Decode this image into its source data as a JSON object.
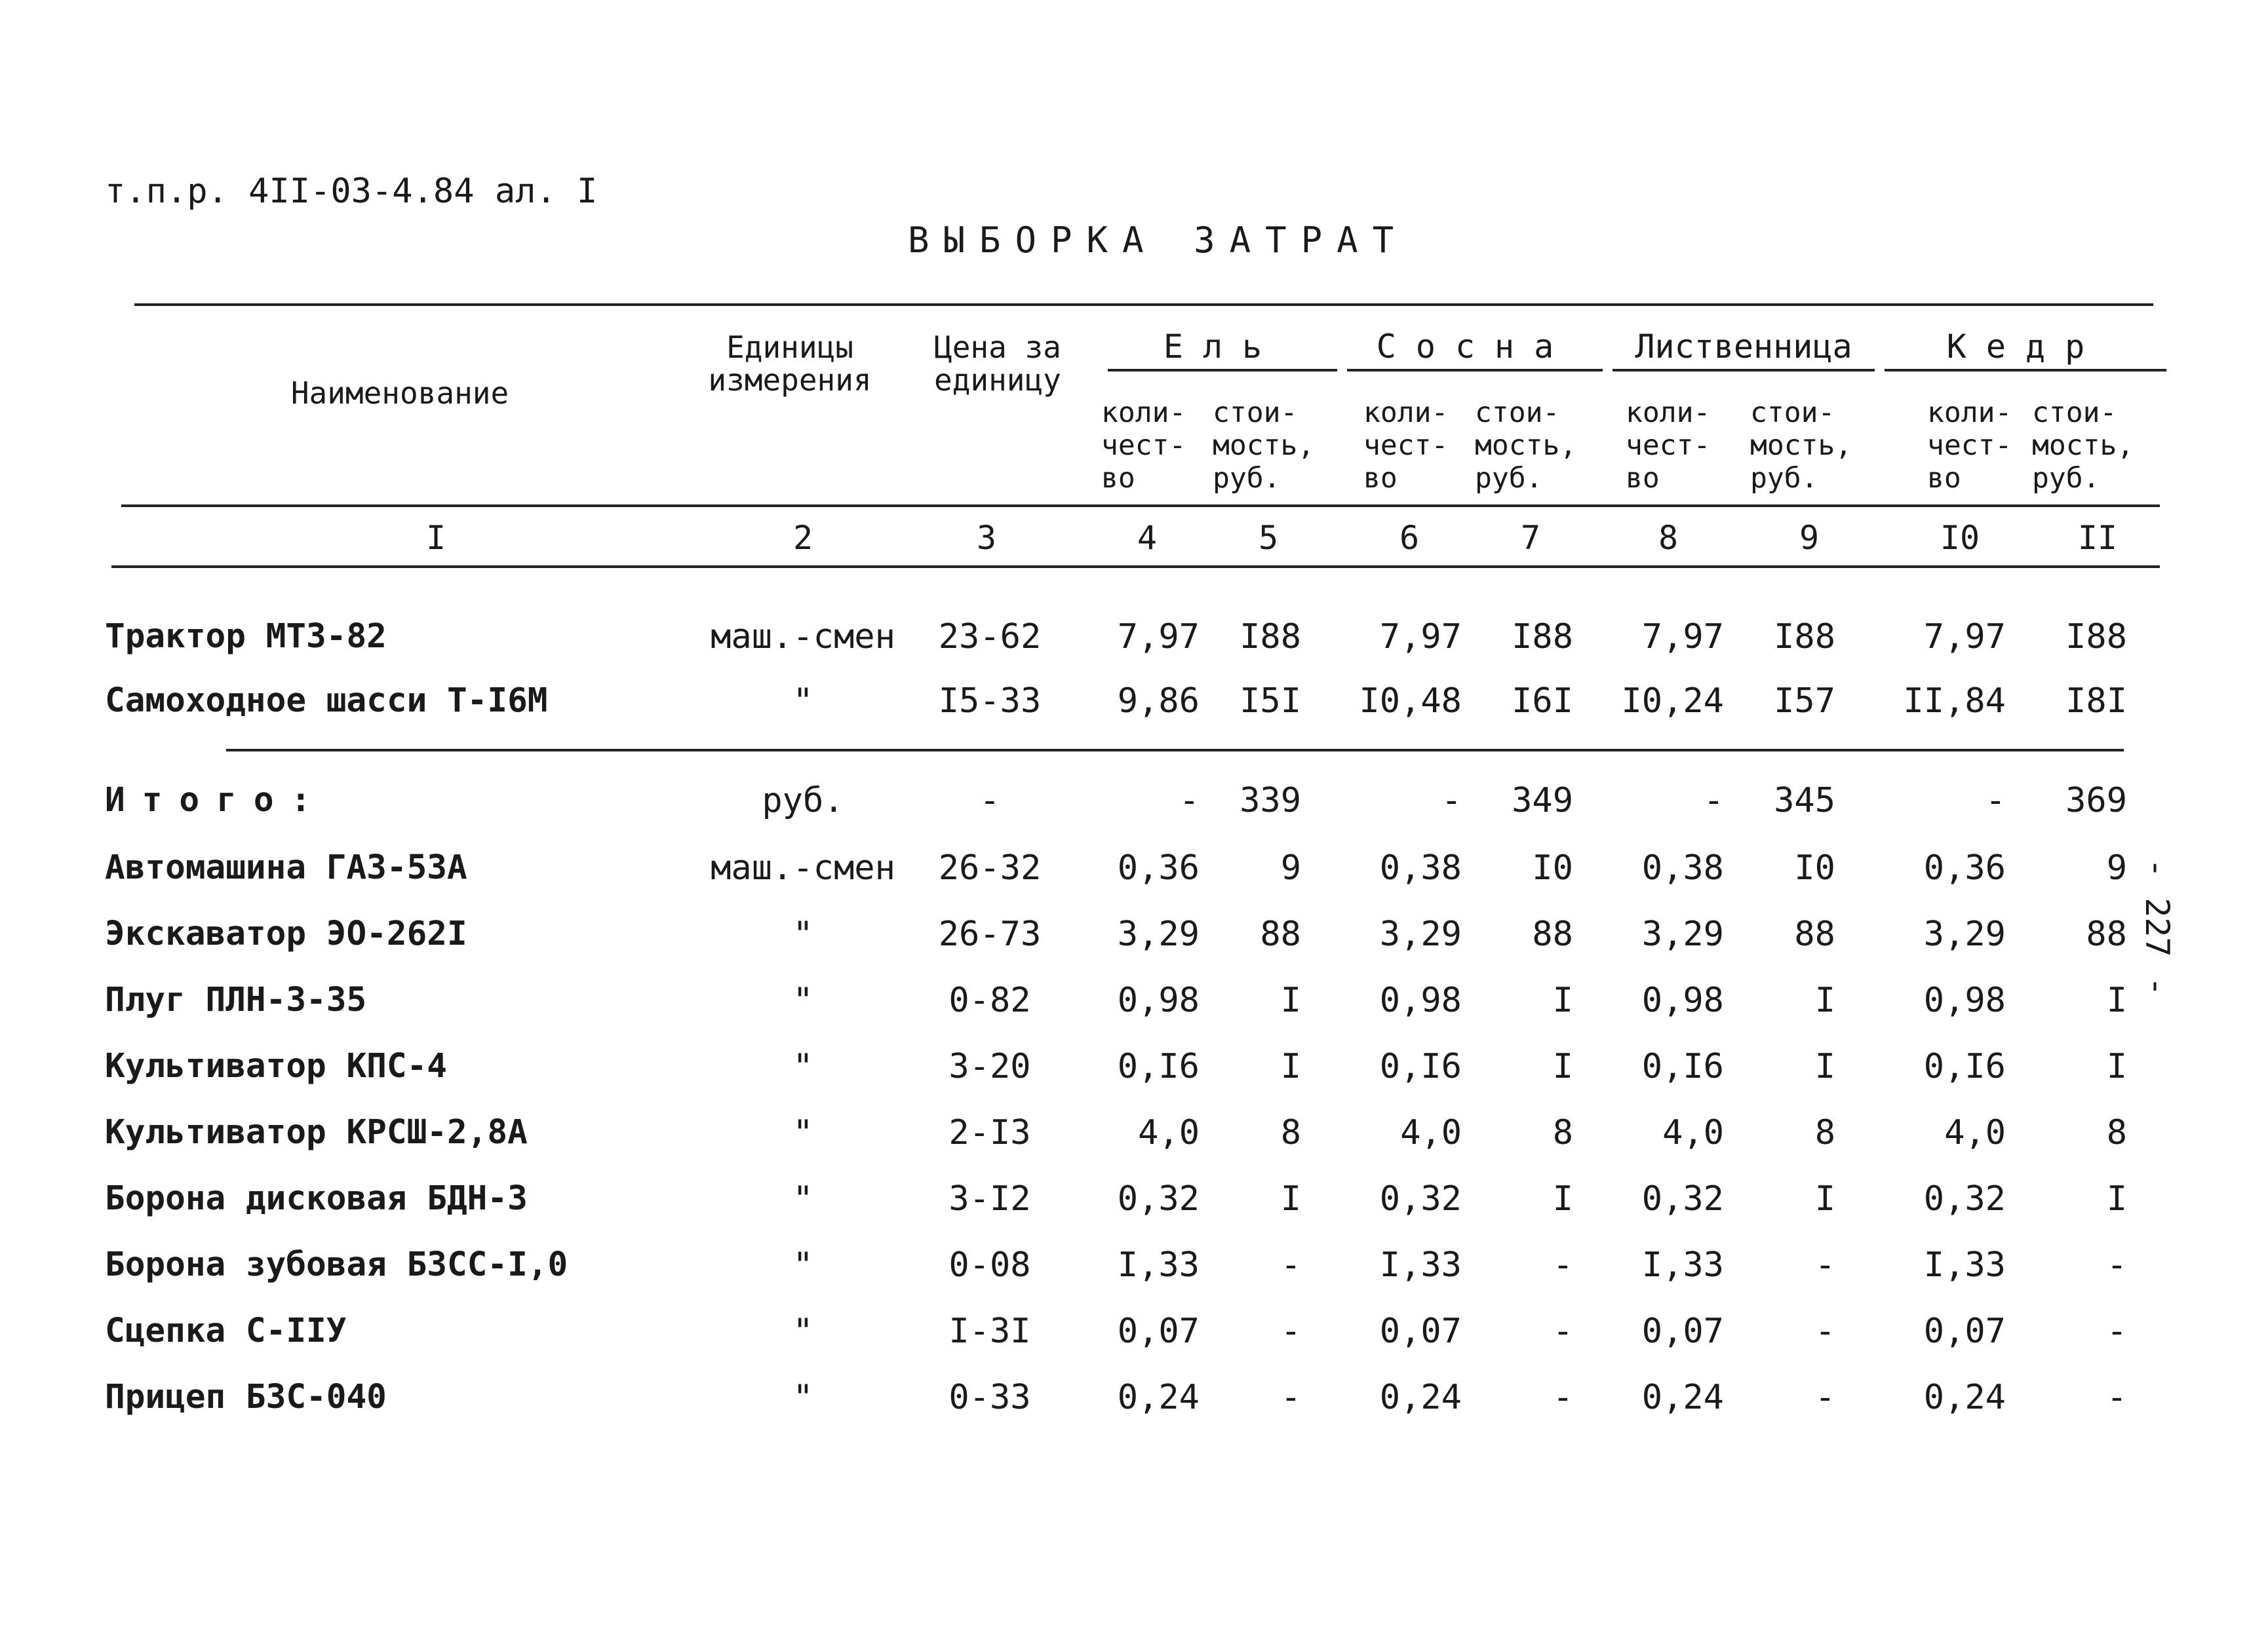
{
  "document": {
    "reference": "т.п.р. 4II-03-4.84 ал. I",
    "title": "ВЫБОРКА ЗАТРАТ",
    "page_number": "- 227 -"
  },
  "table": {
    "headers": {
      "name": "Наименование",
      "unit": [
        "Единицы",
        "измерения"
      ],
      "price": [
        "Цена за",
        "единицу"
      ],
      "groups": [
        "Ель",
        "Сосна",
        "Лиственница",
        "Кедр"
      ],
      "qty": [
        "коли-",
        "чест-",
        "во"
      ],
      "cost": [
        "стои-",
        "мость,",
        "руб."
      ]
    },
    "column_numbers": [
      "I",
      "2",
      "3",
      "4",
      "5",
      "6",
      "7",
      "8",
      "9",
      "I0",
      "II"
    ],
    "rows_top": [
      {
        "name": "Трактор МТЗ-82",
        "unit": "маш.-смен",
        "price": "23-62",
        "values": [
          "7,97",
          "I88",
          "7,97",
          "I88",
          "7,97",
          "I88",
          "7,97",
          "I88"
        ]
      },
      {
        "name": "Самоходное шасси Т-I6М",
        "unit": "\"",
        "price": "I5-33",
        "values": [
          "9,86",
          "I5I",
          "I0,48",
          "I6I",
          "I0,24",
          "I57",
          "II,84",
          "I8I"
        ]
      }
    ],
    "total": {
      "label": "Итого:",
      "unit": "руб.",
      "price": "-",
      "values": [
        "-",
        "339",
        "-",
        "349",
        "-",
        "345",
        "-",
        "369"
      ]
    },
    "rows_bottom": [
      {
        "name": "Автомашина ГАЗ-53А",
        "unit": "маш.-смен",
        "price": "26-32",
        "values": [
          "0,36",
          "9",
          "0,38",
          "I0",
          "0,38",
          "I0",
          "0,36",
          "9"
        ]
      },
      {
        "name": "Экскаватор ЭО-262I",
        "unit": "\"",
        "price": "26-73",
        "values": [
          "3,29",
          "88",
          "3,29",
          "88",
          "3,29",
          "88",
          "3,29",
          "88"
        ]
      },
      {
        "name": "Плуг ПЛН-3-35",
        "unit": "\"",
        "price": "0-82",
        "values": [
          "0,98",
          "I",
          "0,98",
          "I",
          "0,98",
          "I",
          "0,98",
          "I"
        ]
      },
      {
        "name": "Культиватор КПС-4",
        "unit": "\"",
        "price": "3-20",
        "values": [
          "0,I6",
          "I",
          "0,I6",
          "I",
          "0,I6",
          "I",
          "0,I6",
          "I"
        ]
      },
      {
        "name": "Культиватор КРСШ-2,8А",
        "unit": "\"",
        "price": "2-I3",
        "values": [
          "4,0",
          "8",
          "4,0",
          "8",
          "4,0",
          "8",
          "4,0",
          "8"
        ]
      },
      {
        "name": "Борона дисковая БДН-3",
        "unit": "\"",
        "price": "3-I2",
        "values": [
          "0,32",
          "I",
          "0,32",
          "I",
          "0,32",
          "I",
          "0,32",
          "I"
        ]
      },
      {
        "name": "Борона зубовая БЗСС-I,0",
        "unit": "\"",
        "price": "0-08",
        "values": [
          "I,33",
          "-",
          "I,33",
          "-",
          "I,33",
          "-",
          "I,33",
          "-"
        ]
      },
      {
        "name": "Сцепка С-IIУ",
        "unit": "\"",
        "price": "I-3I",
        "values": [
          "0,07",
          "-",
          "0,07",
          "-",
          "0,07",
          "-",
          "0,07",
          "-"
        ]
      },
      {
        "name": "Прицеп БЗС-040",
        "unit": "\"",
        "price": "0-33",
        "values": [
          "0,24",
          "-",
          "0,24",
          "-",
          "0,24",
          "-",
          "0,24",
          "-"
        ]
      }
    ]
  }
}
